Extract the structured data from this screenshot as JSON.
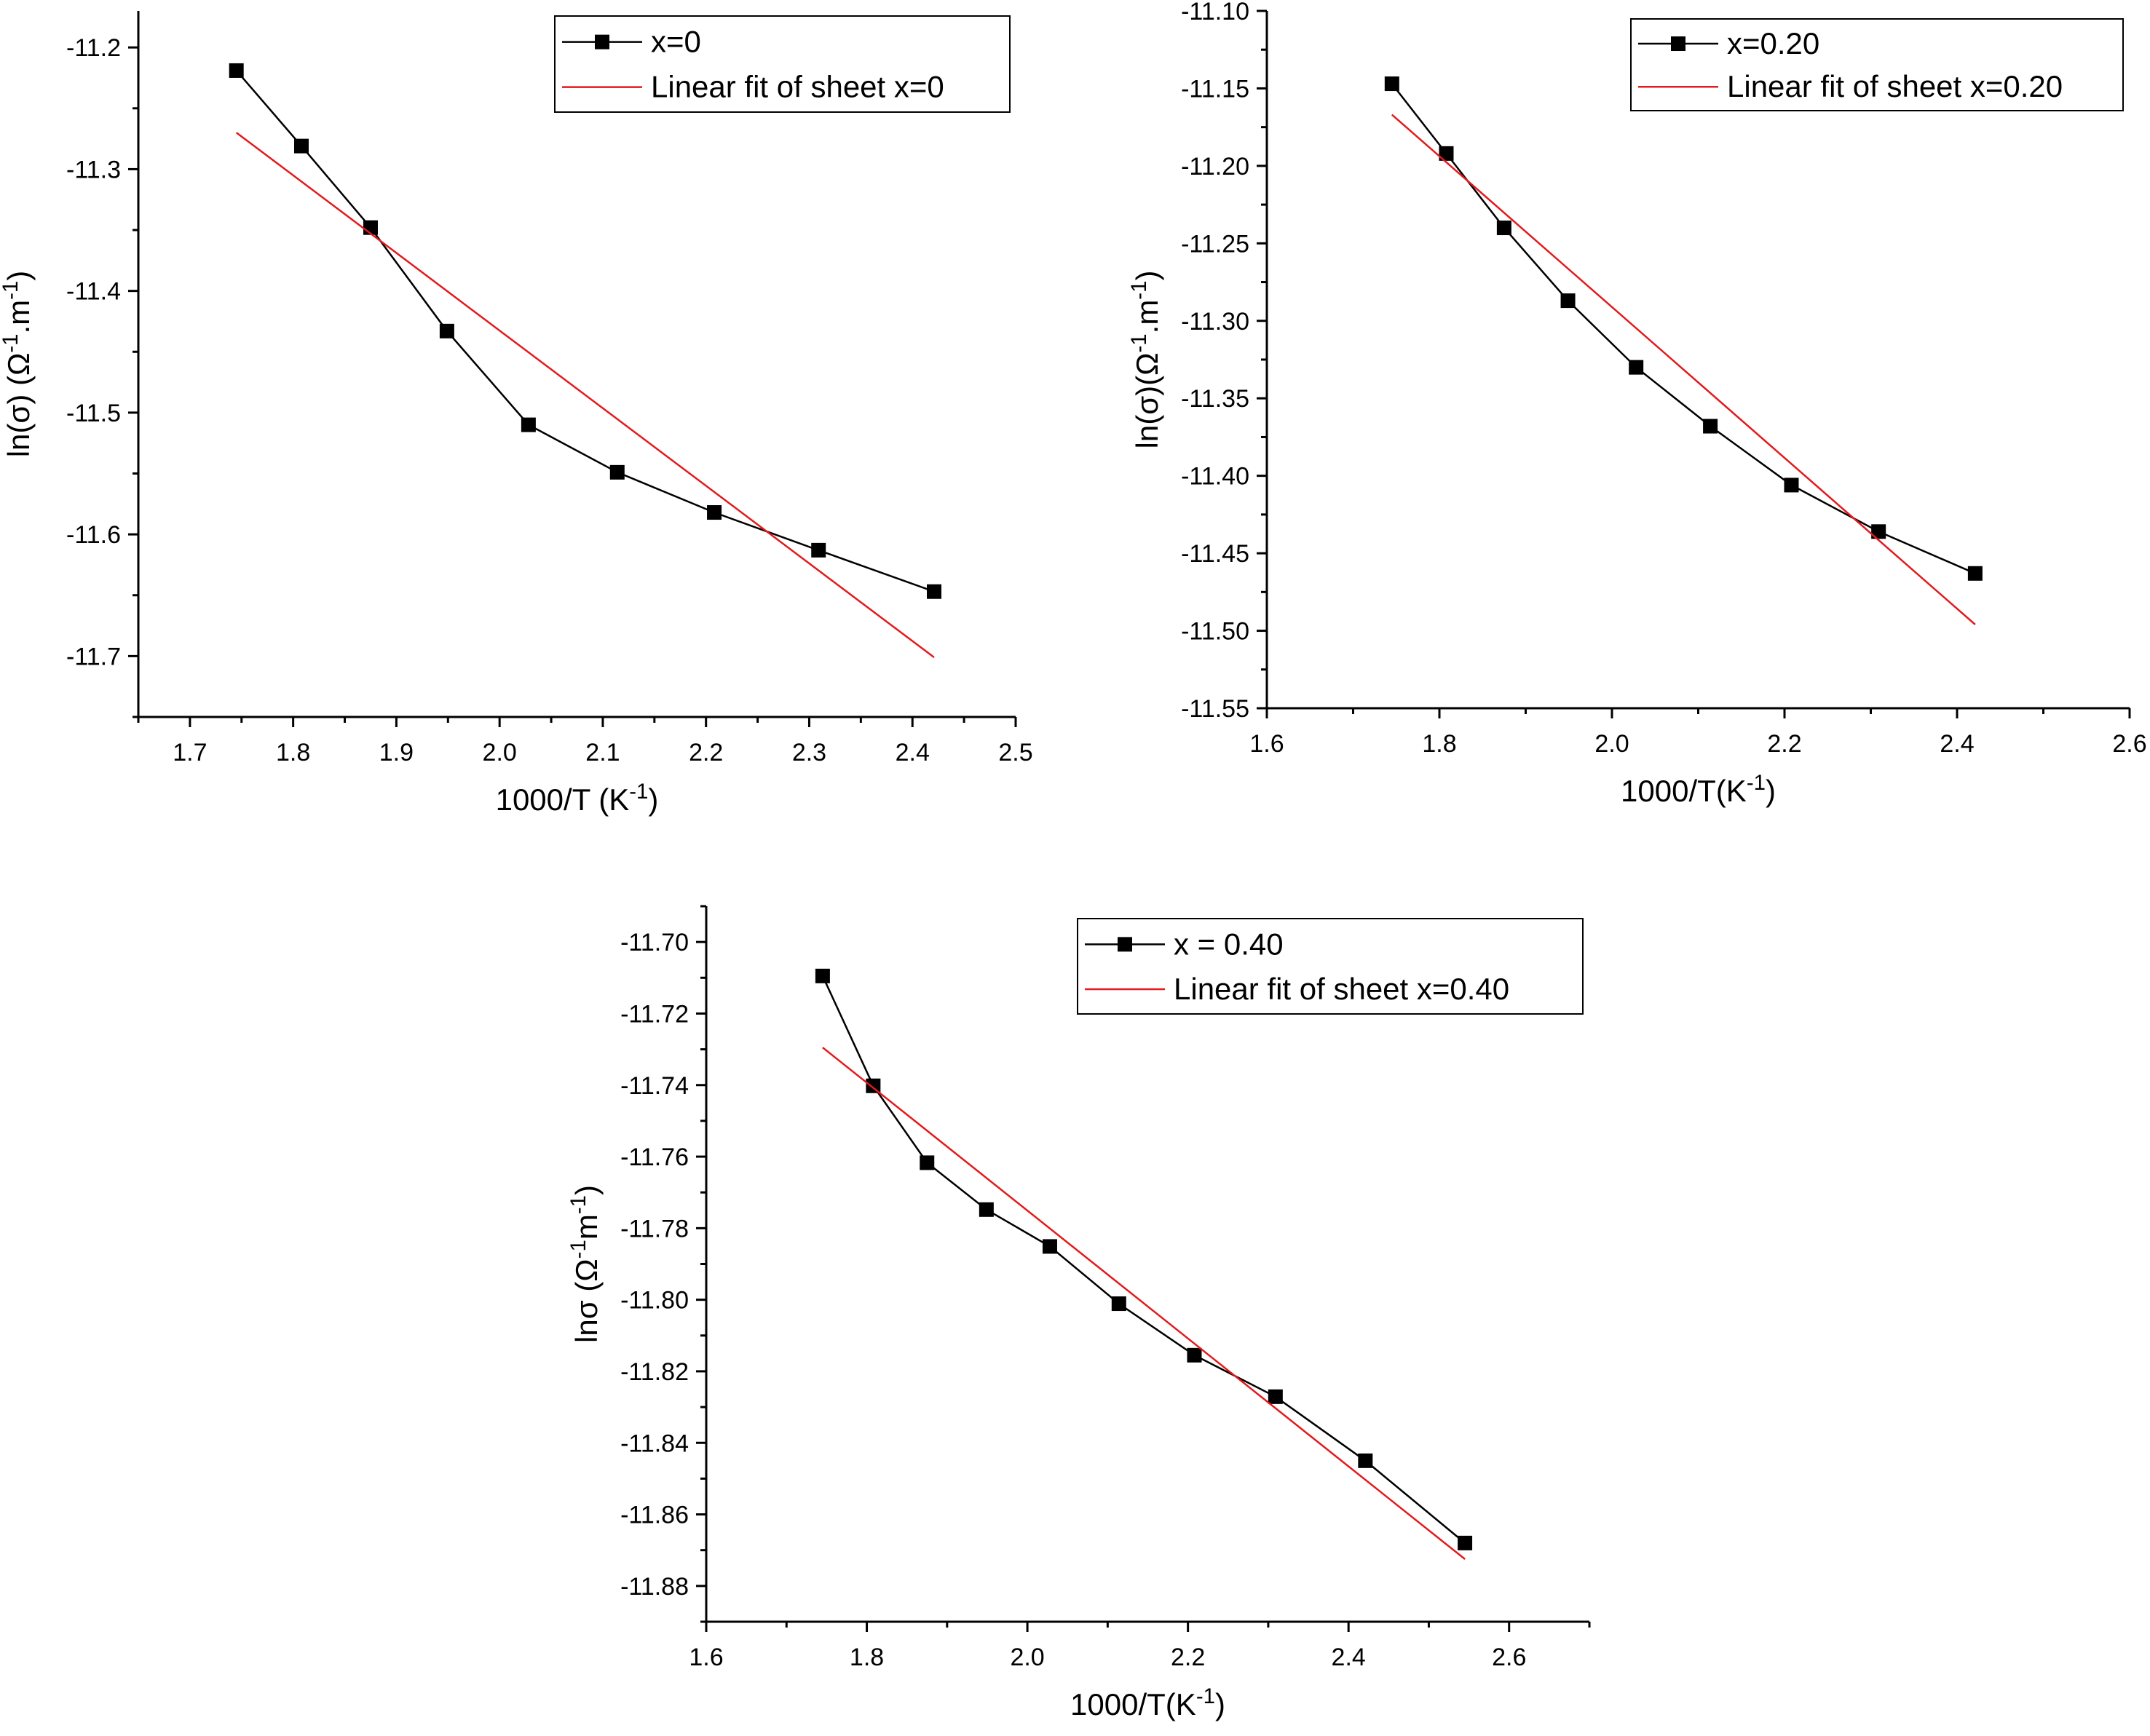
{
  "chart_data": [
    {
      "type": "line",
      "xlabel": "1000/T (K",
      "xlabel_sup": "-1",
      "xlabel_tail": ")",
      "ylabel_parts": [
        "ln(σ) (Ω",
        "-1",
        ".m",
        "-1"
      ],
      "xlim": [
        1.65,
        2.5
      ],
      "ylim": [
        -11.75,
        -11.17
      ],
      "xticks": [
        1.7,
        1.8,
        1.9,
        2.0,
        2.1,
        2.2,
        2.3,
        2.4,
        2.5
      ],
      "xtick_labels": [
        "1.7",
        "1.8",
        "1.9",
        "2.0",
        "2.1",
        "2.2",
        "2.3",
        "2.4",
        "2.5"
      ],
      "yticks": [
        -11.7,
        -11.6,
        -11.5,
        -11.4,
        -11.3,
        -11.2
      ],
      "ytick_labels": [
        "-11.7",
        "-11.6",
        "-11.5",
        "-11.4",
        "-11.3",
        "-11.2"
      ],
      "legend_position": "top-right",
      "series": [
        {
          "name": "x=0",
          "color": "#000000",
          "marker": "square",
          "x": [
            1.745,
            1.808,
            1.875,
            1.949,
            2.028,
            2.114,
            2.208,
            2.309,
            2.421
          ],
          "y": [
            -11.219,
            -11.281,
            -11.348,
            -11.433,
            -11.51,
            -11.549,
            -11.582,
            -11.613,
            -11.647
          ]
        },
        {
          "name": "Linear fit of sheet x=0",
          "color": "#e31a1c",
          "marker": "none",
          "x": [
            1.745,
            2.421
          ],
          "y": [
            -11.27,
            -11.701
          ]
        }
      ]
    },
    {
      "type": "line",
      "xlabel": "1000/T(K",
      "xlabel_sup": "-1",
      "xlabel_tail": ")",
      "ylabel_parts": [
        "ln(σ)(Ω",
        "-1",
        ".m",
        "-1"
      ],
      "xlim": [
        1.6,
        2.6
      ],
      "ylim": [
        -11.55,
        -11.1
      ],
      "xticks": [
        1.6,
        1.8,
        2.0,
        2.2,
        2.4,
        2.6
      ],
      "xtick_labels": [
        "1.6",
        "1.8",
        "2.0",
        "2.2",
        "2.4",
        "2.6"
      ],
      "yticks": [
        -11.55,
        -11.5,
        -11.45,
        -11.4,
        -11.35,
        -11.3,
        -11.25,
        -11.2,
        -11.15,
        -11.1
      ],
      "ytick_labels": [
        "-11.55",
        "-11.50",
        "-11.45",
        "-11.40",
        "-11.35",
        "-11.30",
        "-11.25",
        "-11.20",
        "-11.15",
        "-11.10"
      ],
      "legend_position": "top-right",
      "series": [
        {
          "name": "x=0.20",
          "color": "#000000",
          "marker": "square",
          "x": [
            1.745,
            1.808,
            1.875,
            1.949,
            2.028,
            2.114,
            2.208,
            2.309,
            2.421
          ],
          "y": [
            -11.147,
            -11.192,
            -11.24,
            -11.287,
            -11.33,
            -11.368,
            -11.406,
            -11.436,
            -11.463
          ]
        },
        {
          "name": "Linear fit of sheet x=0.20",
          "color": "#e31a1c",
          "marker": "none",
          "x": [
            1.745,
            2.421
          ],
          "y": [
            -11.167,
            -11.496
          ]
        }
      ]
    },
    {
      "type": "line",
      "xlabel": "1000/T(K",
      "xlabel_sup": "-1",
      "xlabel_tail": ")",
      "ylabel_parts": [
        "lnσ (Ω",
        "-1",
        "m",
        "-1"
      ],
      "xlim": [
        1.6,
        2.7
      ],
      "ylim": [
        -11.89,
        -11.69
      ],
      "xticks": [
        1.6,
        1.8,
        2.0,
        2.2,
        2.4,
        2.6
      ],
      "xtick_labels": [
        "1.6",
        "1.8",
        "2.0",
        "2.2",
        "2.4",
        "2.6"
      ],
      "yticks": [
        -11.88,
        -11.86,
        -11.84,
        -11.82,
        -11.8,
        -11.78,
        -11.76,
        -11.74,
        -11.72,
        -11.7
      ],
      "ytick_labels": [
        "-11.88",
        "-11.86",
        "-11.84",
        "-11.82",
        "-11.80",
        "-11.78",
        "-11.76",
        "-11.74",
        "-11.72",
        "-11.70"
      ],
      "legend_position": "top-right",
      "series": [
        {
          "name": "x = 0.40",
          "color": "#000000",
          "marker": "square",
          "x": [
            1.745,
            1.808,
            1.875,
            1.949,
            2.028,
            2.114,
            2.208,
            2.309,
            2.421,
            2.545
          ],
          "y": [
            -11.7095,
            -11.7402,
            -11.7617,
            -11.7748,
            -11.7851,
            -11.8011,
            -11.8155,
            -11.8271,
            -11.845,
            -11.868
          ]
        },
        {
          "name": "Linear fit of sheet x=0.40",
          "color": "#e31a1c",
          "marker": "none",
          "x": [
            1.745,
            2.545
          ],
          "y": [
            -11.7295,
            -11.8725
          ]
        }
      ]
    }
  ]
}
